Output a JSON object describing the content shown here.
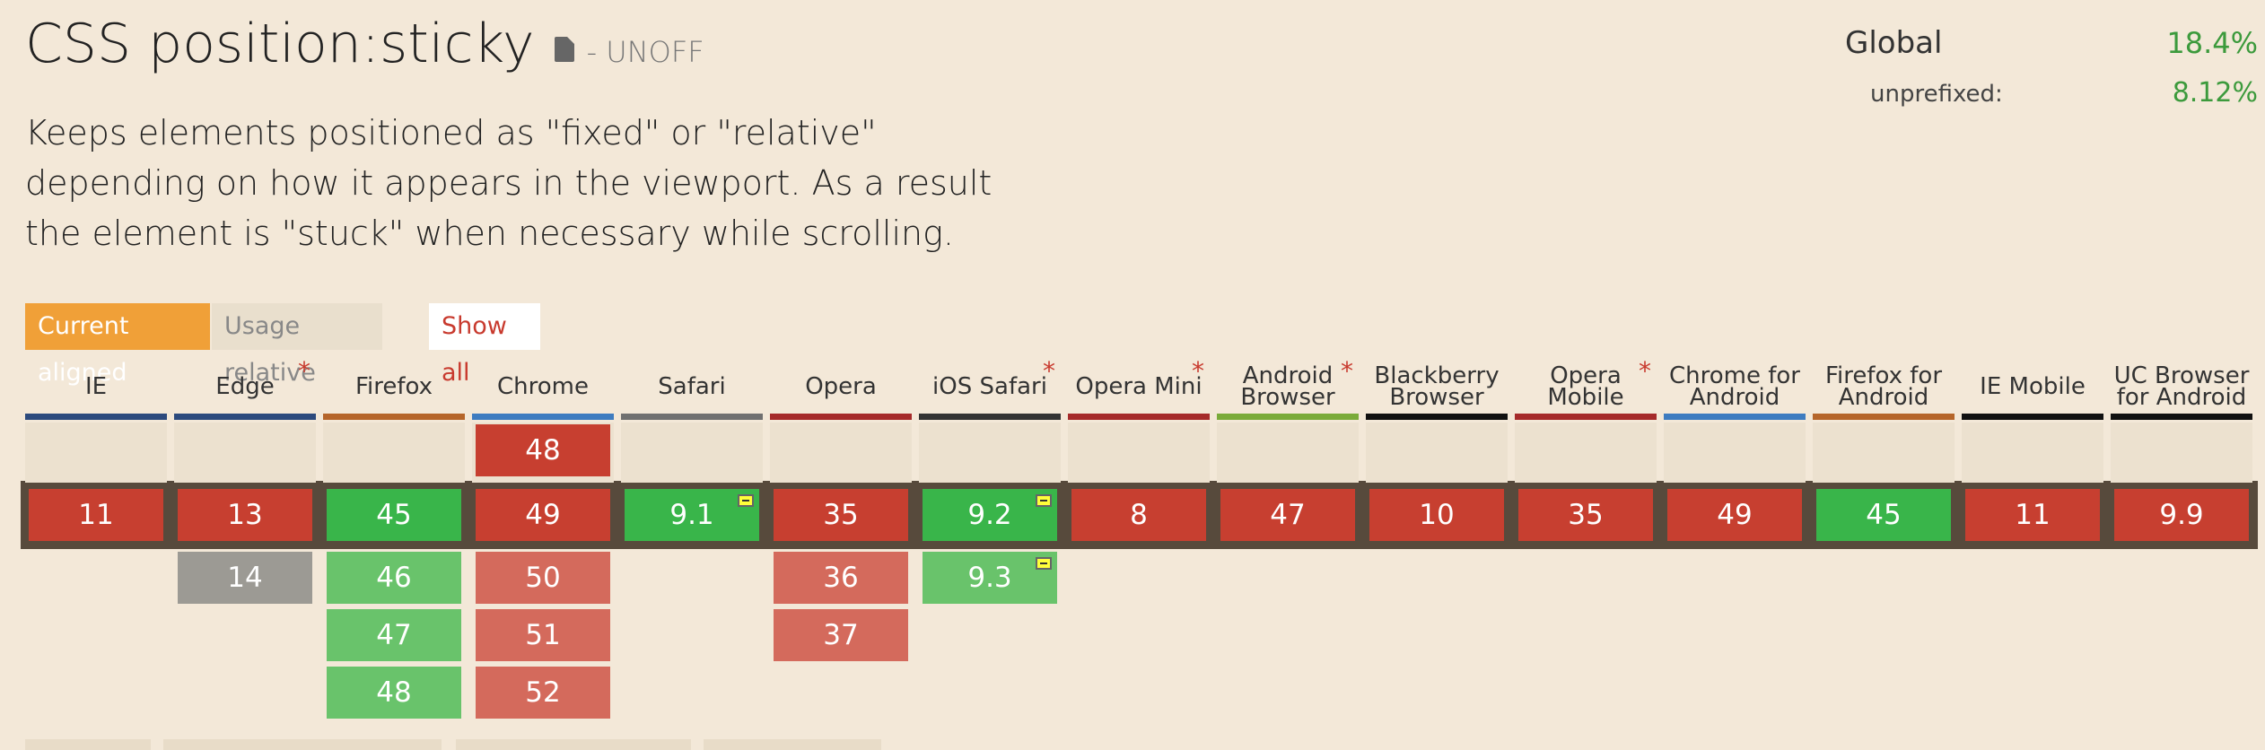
{
  "feature": {
    "title": "CSS position:sticky",
    "status": "- UNOFF",
    "description": "Keeps elements positioned as \"fixed\" or \"relative\" depending on how it appears in the viewport. As a result the element is \"stuck\" when necessary while scrolling."
  },
  "usage": {
    "global_label": "Global",
    "global_value": "18.4%",
    "unprefixed_label": "unprefixed:",
    "unprefixed_value": "8.12%"
  },
  "controls": {
    "current_aligned": "Current aligned",
    "usage_relative": "Usage relative",
    "show_all": "Show all"
  },
  "browsers": [
    {
      "name": "IE",
      "bar": "#2c4a7d",
      "note": false,
      "past": [],
      "current": {
        "v": "11",
        "s": "n"
      },
      "future": []
    },
    {
      "name": "Edge",
      "bar": "#2c4a7d",
      "note": true,
      "past": [],
      "current": {
        "v": "13",
        "s": "n"
      },
      "future": [
        {
          "v": "14",
          "s": "u"
        }
      ]
    },
    {
      "name": "Firefox",
      "bar": "#b5652a",
      "note": false,
      "past": [],
      "current": {
        "v": "45",
        "s": "y"
      },
      "future": [
        {
          "v": "46",
          "s": "y2"
        },
        {
          "v": "47",
          "s": "y2"
        },
        {
          "v": "48",
          "s": "y2"
        }
      ]
    },
    {
      "name": "Chrome",
      "bar": "#3e7cc0",
      "note": false,
      "past": [
        {
          "v": "48",
          "s": "n"
        }
      ],
      "current": {
        "v": "49",
        "s": "n"
      },
      "future": [
        {
          "v": "50",
          "s": "n2"
        },
        {
          "v": "51",
          "s": "n2"
        },
        {
          "v": "52",
          "s": "n2"
        }
      ]
    },
    {
      "name": "Safari",
      "bar": "#707070",
      "note": false,
      "past": [],
      "current": {
        "v": "9.1",
        "s": "y",
        "partial": true
      },
      "future": []
    },
    {
      "name": "Opera",
      "bar": "#a52a2a",
      "note": false,
      "past": [],
      "current": {
        "v": "35",
        "s": "n"
      },
      "future": [
        {
          "v": "36",
          "s": "n2"
        },
        {
          "v": "37",
          "s": "n2"
        }
      ]
    },
    {
      "name": "iOS Safari",
      "bar": "#333333",
      "note": true,
      "past": [],
      "current": {
        "v": "9.2",
        "s": "y",
        "partial": true
      },
      "future": [
        {
          "v": "9.3",
          "s": "y2",
          "partial": true
        }
      ]
    },
    {
      "name": "Opera Mini",
      "bar": "#a52a2a",
      "note": true,
      "past": [],
      "current": {
        "v": "8",
        "s": "n"
      },
      "future": []
    },
    {
      "name": "Android Browser",
      "bar": "#7aab3a",
      "note": true,
      "past": [],
      "current": {
        "v": "47",
        "s": "n"
      },
      "future": []
    },
    {
      "name": "Blackberry Browser",
      "bar": "#111111",
      "note": false,
      "past": [],
      "current": {
        "v": "10",
        "s": "n"
      },
      "future": []
    },
    {
      "name": "Opera Mobile",
      "bar": "#a52a2a",
      "note": true,
      "past": [],
      "current": {
        "v": "35",
        "s": "n"
      },
      "future": []
    },
    {
      "name": "Chrome for Android",
      "bar": "#3e7cc0",
      "note": false,
      "past": [],
      "current": {
        "v": "49",
        "s": "n"
      },
      "future": []
    },
    {
      "name": "Firefox for Android",
      "bar": "#b5652a",
      "note": false,
      "past": [],
      "current": {
        "v": "45",
        "s": "y"
      },
      "future": []
    },
    {
      "name": "IE Mobile",
      "bar": "#111111",
      "note": false,
      "past": [],
      "current": {
        "v": "11",
        "s": "n"
      },
      "future": []
    },
    {
      "name": "UC Browser for Android",
      "bar": "#111111",
      "note": false,
      "past": [],
      "current": {
        "v": "9.9",
        "s": "n"
      },
      "future": []
    }
  ]
}
